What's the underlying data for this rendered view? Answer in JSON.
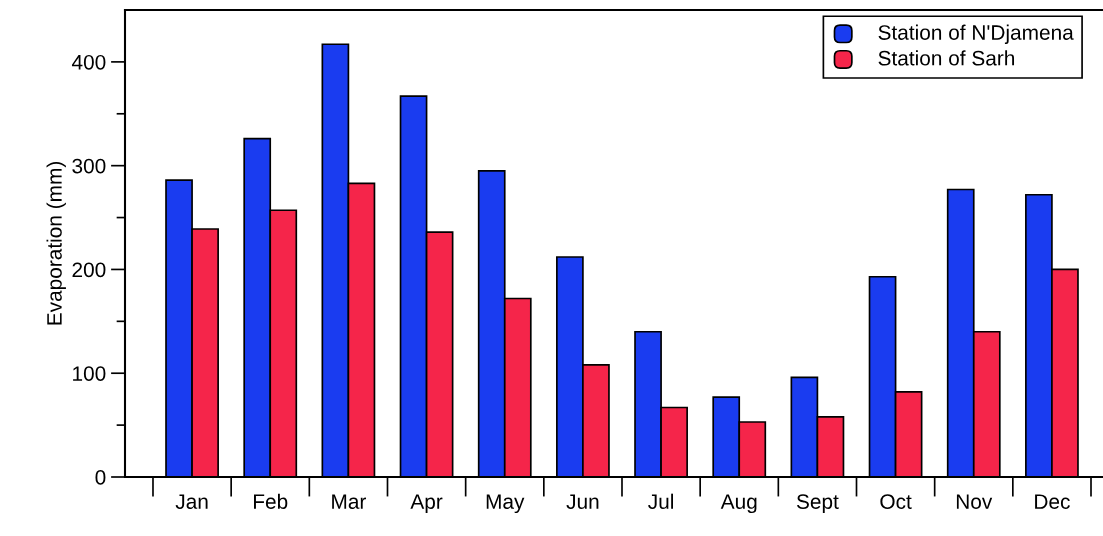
{
  "chart_data": {
    "type": "bar",
    "ylabel": "Evaporation (mm)",
    "categories": [
      "Jan",
      "Feb",
      "Mar",
      "Apr",
      "May",
      "Jun",
      "Jul",
      "Aug",
      "Sept",
      "Oct",
      "Nov",
      "Dec"
    ],
    "series": [
      {
        "name": "Station of N'Djamena",
        "color": "#1a3cf0",
        "values": [
          286,
          326,
          417,
          367,
          295,
          212,
          140,
          77,
          96,
          193,
          277,
          272
        ]
      },
      {
        "name": "Station of Sarh",
        "color": "#f5254a",
        "values": [
          239,
          257,
          283,
          236,
          172,
          108,
          67,
          53,
          58,
          82,
          140,
          200
        ]
      }
    ],
    "ylim": [
      0,
      450
    ],
    "yticks": [
      0,
      {
        "value": 50,
        "label": null
      },
      100,
      {
        "value": 150,
        "label": null
      },
      200,
      {
        "value": 250,
        "label": null
      },
      300,
      {
        "value": 350,
        "label": null
      },
      400
    ],
    "grid": false,
    "legend": "top right"
  }
}
